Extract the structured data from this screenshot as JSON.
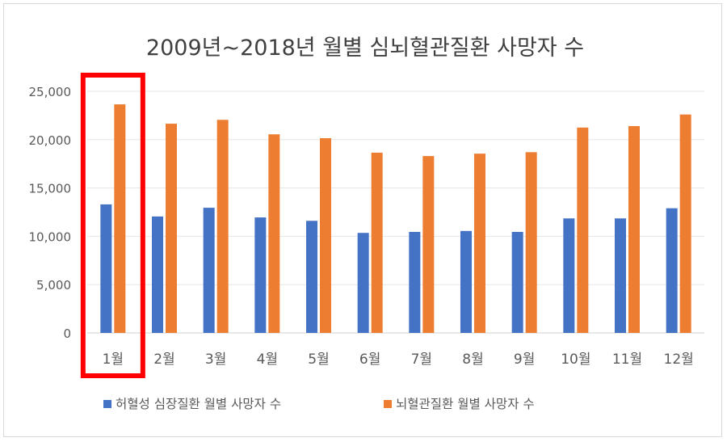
{
  "chart_data": {
    "type": "bar",
    "title": "2009년~2018년 월별 심뇌혈관질환 사망자 수",
    "xlabel": "",
    "ylabel": "",
    "ylim": [
      0,
      25000
    ],
    "yticks": [
      0,
      5000,
      10000,
      15000,
      20000,
      25000
    ],
    "ytick_labels": [
      "0",
      "5,000",
      "10,000",
      "15,000",
      "20,000",
      "25,000"
    ],
    "grid": true,
    "legend_position": "bottom",
    "categories": [
      "1월",
      "2월",
      "3월",
      "4월",
      "5월",
      "6월",
      "7월",
      "8월",
      "9월",
      "10월",
      "11월",
      "12월"
    ],
    "series": [
      {
        "name": "허혈성 심장질환 월별 사망자 수",
        "color": "#4472c4",
        "values": [
          13300,
          12050,
          12950,
          11950,
          11600,
          10350,
          10450,
          10550,
          10450,
          11850,
          11850,
          12900
        ]
      },
      {
        "name": "뇌혈관질환 월별 사망자 수",
        "color": "#ed7d31",
        "values": [
          23650,
          21650,
          22050,
          20550,
          20150,
          18650,
          18300,
          18550,
          18700,
          21250,
          21400,
          22600
        ]
      }
    ],
    "highlight": {
      "category": "1월",
      "color": "#ff0000"
    }
  }
}
